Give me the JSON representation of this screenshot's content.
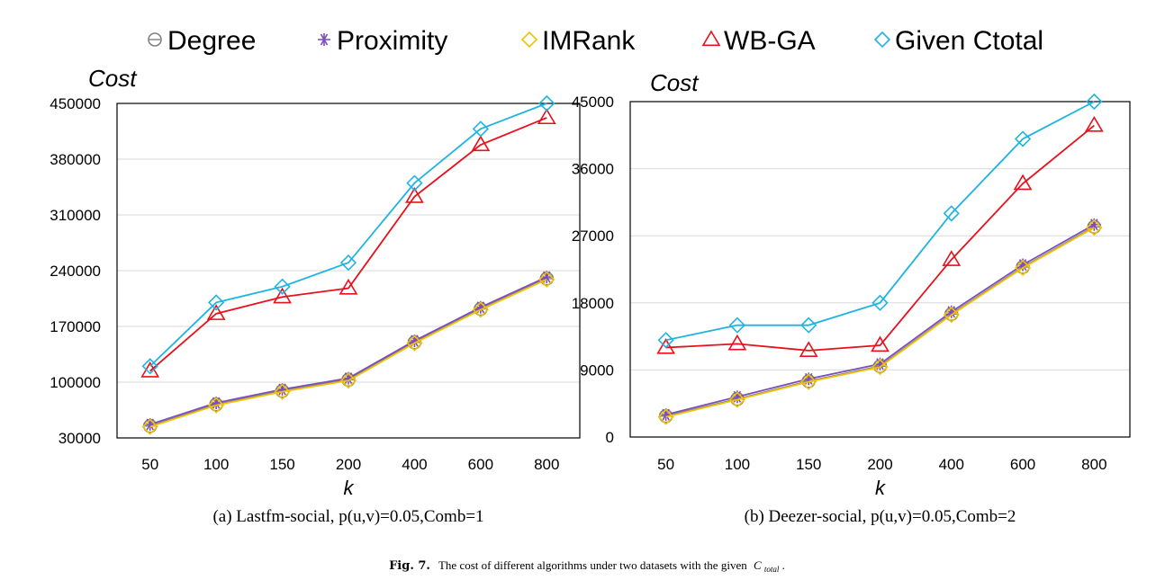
{
  "legend": {
    "entries": [
      {
        "name": "Degree",
        "marker": "circle",
        "color": "#808080"
      },
      {
        "name": "Proximity",
        "marker": "star",
        "color": "#7b4fbf"
      },
      {
        "name": "IMRank",
        "marker": "diamond",
        "color": "#f2c200"
      },
      {
        "name": "WB-GA",
        "marker": "triangle",
        "color": "#e8101a"
      },
      {
        "name": "Given Ctotal",
        "marker": "diamond",
        "color": "#1fb4e0"
      }
    ]
  },
  "chart_data": [
    {
      "type": "line",
      "ylabel": "Cost",
      "xlabel": "k",
      "caption": "(a) Lastfm-social, p(u,v)=0.05,Comb=1",
      "categories": [
        "50",
        "100",
        "150",
        "200",
        "400",
        "600",
        "800"
      ],
      "ylim": [
        30000,
        450000
      ],
      "yticks": [
        "30000",
        "100000",
        "170000",
        "240000",
        "310000",
        "380000",
        "450000"
      ],
      "ytick_values": [
        30000,
        100000,
        170000,
        240000,
        310000,
        380000,
        450000
      ],
      "grid": "horizontal",
      "series": [
        {
          "name": "Degree",
          "values": [
            45000,
            72000,
            89000,
            103000,
            150000,
            192000,
            230000
          ]
        },
        {
          "name": "Proximity",
          "values": [
            47000,
            74000,
            91000,
            105000,
            152000,
            194000,
            232000
          ]
        },
        {
          "name": "IMRank",
          "values": [
            44000,
            71000,
            88000,
            102000,
            149000,
            191000,
            229000
          ]
        },
        {
          "name": "WB-GA",
          "values": [
            114000,
            186000,
            207000,
            218000,
            333000,
            398000,
            432000
          ]
        },
        {
          "name": "Given Ctotal",
          "values": [
            120000,
            200000,
            220000,
            250000,
            350000,
            418000,
            450000
          ]
        }
      ]
    },
    {
      "type": "line",
      "ylabel": "Cost",
      "xlabel": "k",
      "caption": "(b) Deezer-social, p(u,v)=0.05,Comb=2",
      "categories": [
        "50",
        "100",
        "150",
        "200",
        "400",
        "600",
        "800"
      ],
      "ylim": [
        0,
        45000
      ],
      "yticks": [
        "0",
        "9000",
        "18000",
        "27000",
        "36000",
        "45000"
      ],
      "ytick_values": [
        0,
        9000,
        18000,
        27000,
        36000,
        45000
      ],
      "grid": "horizontal",
      "series": [
        {
          "name": "Degree",
          "values": [
            2800,
            5100,
            7500,
            9500,
            16500,
            22800,
            28200
          ]
        },
        {
          "name": "Proximity",
          "values": [
            3000,
            5400,
            7800,
            9800,
            16800,
            23100,
            28500
          ]
        },
        {
          "name": "IMRank",
          "values": [
            2700,
            5000,
            7400,
            9400,
            16400,
            22700,
            28100
          ]
        },
        {
          "name": "WB-GA",
          "values": [
            12000,
            12500,
            11600,
            12300,
            23800,
            34000,
            41800
          ]
        },
        {
          "name": "Given Ctotal",
          "values": [
            13000,
            15000,
            15000,
            18000,
            30000,
            40000,
            45000
          ]
        }
      ]
    }
  ],
  "figure_caption": {
    "label": "Fig. 7.",
    "text": "The cost of different algorithms under two datasets with the given",
    "symbol": "C",
    "subscript": "total",
    "end": "."
  }
}
